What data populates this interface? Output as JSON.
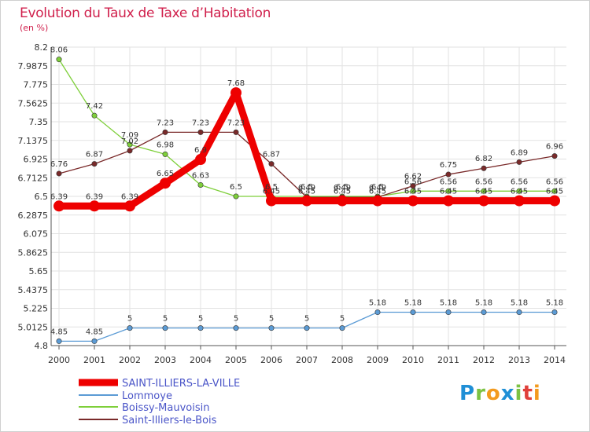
{
  "title": "Evolution du Taux de Taxe d’Habitation",
  "subtitle": "(en %)",
  "brand": "Proxiti",
  "chart_data": {
    "type": "line",
    "title": "Evolution du Taux de Taxe d’Habitation",
    "subtitle": "(en %)",
    "x": [
      "2000",
      "2001",
      "2002",
      "2003",
      "2004",
      "2005",
      "2006",
      "2007",
      "2008",
      "2009",
      "2010",
      "2011",
      "2012",
      "2013",
      "2014"
    ],
    "ylim": [
      4.8,
      8.2
    ],
    "yticks": [
      "4.8",
      "5.0125",
      "5.225",
      "5.4375",
      "5.65",
      "5.8625",
      "6.075",
      "6.2875",
      "6.5",
      "6.7125",
      "6.925",
      "7.1375",
      "7.35",
      "7.5625",
      "7.775",
      "7.9875",
      "8.2"
    ],
    "grid": true,
    "legend_position": "bottom-left",
    "series": [
      {
        "name": "SAINT-ILLIERS-LA-VILLE",
        "color": "#ee0000",
        "values": [
          6.39,
          6.39,
          6.39,
          6.65,
          6.92,
          7.68,
          6.45,
          6.45,
          6.45,
          6.45,
          6.45,
          6.45,
          6.45,
          6.45,
          6.45
        ],
        "labels": [
          "6.39",
          "6.39",
          "6.39",
          "6.65",
          "6.9",
          "7.68",
          "6.45",
          "6.45",
          "6.45",
          "6.45",
          "6.45",
          "6.45",
          "6.45",
          "6.45",
          "6.45"
        ]
      },
      {
        "name": "Lommoye",
        "color": "#5b9bd5",
        "values": [
          4.85,
          4.85,
          5,
          5,
          5,
          5,
          5,
          5,
          5,
          5.18,
          5.18,
          5.18,
          5.18,
          5.18,
          5.18
        ],
        "labels": [
          "4.85",
          "4.85",
          "5",
          "5",
          "5",
          "5",
          "5",
          "5",
          "5",
          "5.18",
          "5.18",
          "5.18",
          "5.18",
          "5.18",
          "5.18"
        ]
      },
      {
        "name": "Boissy-Mauvoisin",
        "color": "#7ecf3a",
        "values": [
          8.06,
          7.42,
          7.09,
          6.98,
          6.63,
          6.5,
          6.5,
          6.5,
          6.5,
          6.5,
          6.56,
          6.56,
          6.56,
          6.56,
          6.56
        ],
        "labels": [
          "8.06",
          "7.42",
          "7.09",
          "6.98",
          "6.63",
          "6.5",
          "6.5",
          "6.5",
          "6.5",
          "6.5",
          "6.56",
          "6.56",
          "6.56",
          "6.56",
          "6.56"
        ]
      },
      {
        "name": "Saint-Illiers-le-Bois",
        "color": "#7a2a2a",
        "values": [
          6.76,
          6.87,
          7.02,
          7.23,
          7.23,
          7.23,
          6.87,
          6.49,
          6.49,
          6.49,
          6.62,
          6.75,
          6.82,
          6.89,
          6.96
        ],
        "labels": [
          "6.76",
          "6.87",
          "7.02",
          "7.23",
          "7.23",
          "7.23",
          "6.87",
          "6.49",
          "6.49",
          "6.49",
          "6.62",
          "6.75",
          "6.82",
          "6.89",
          "6.96"
        ]
      }
    ]
  }
}
